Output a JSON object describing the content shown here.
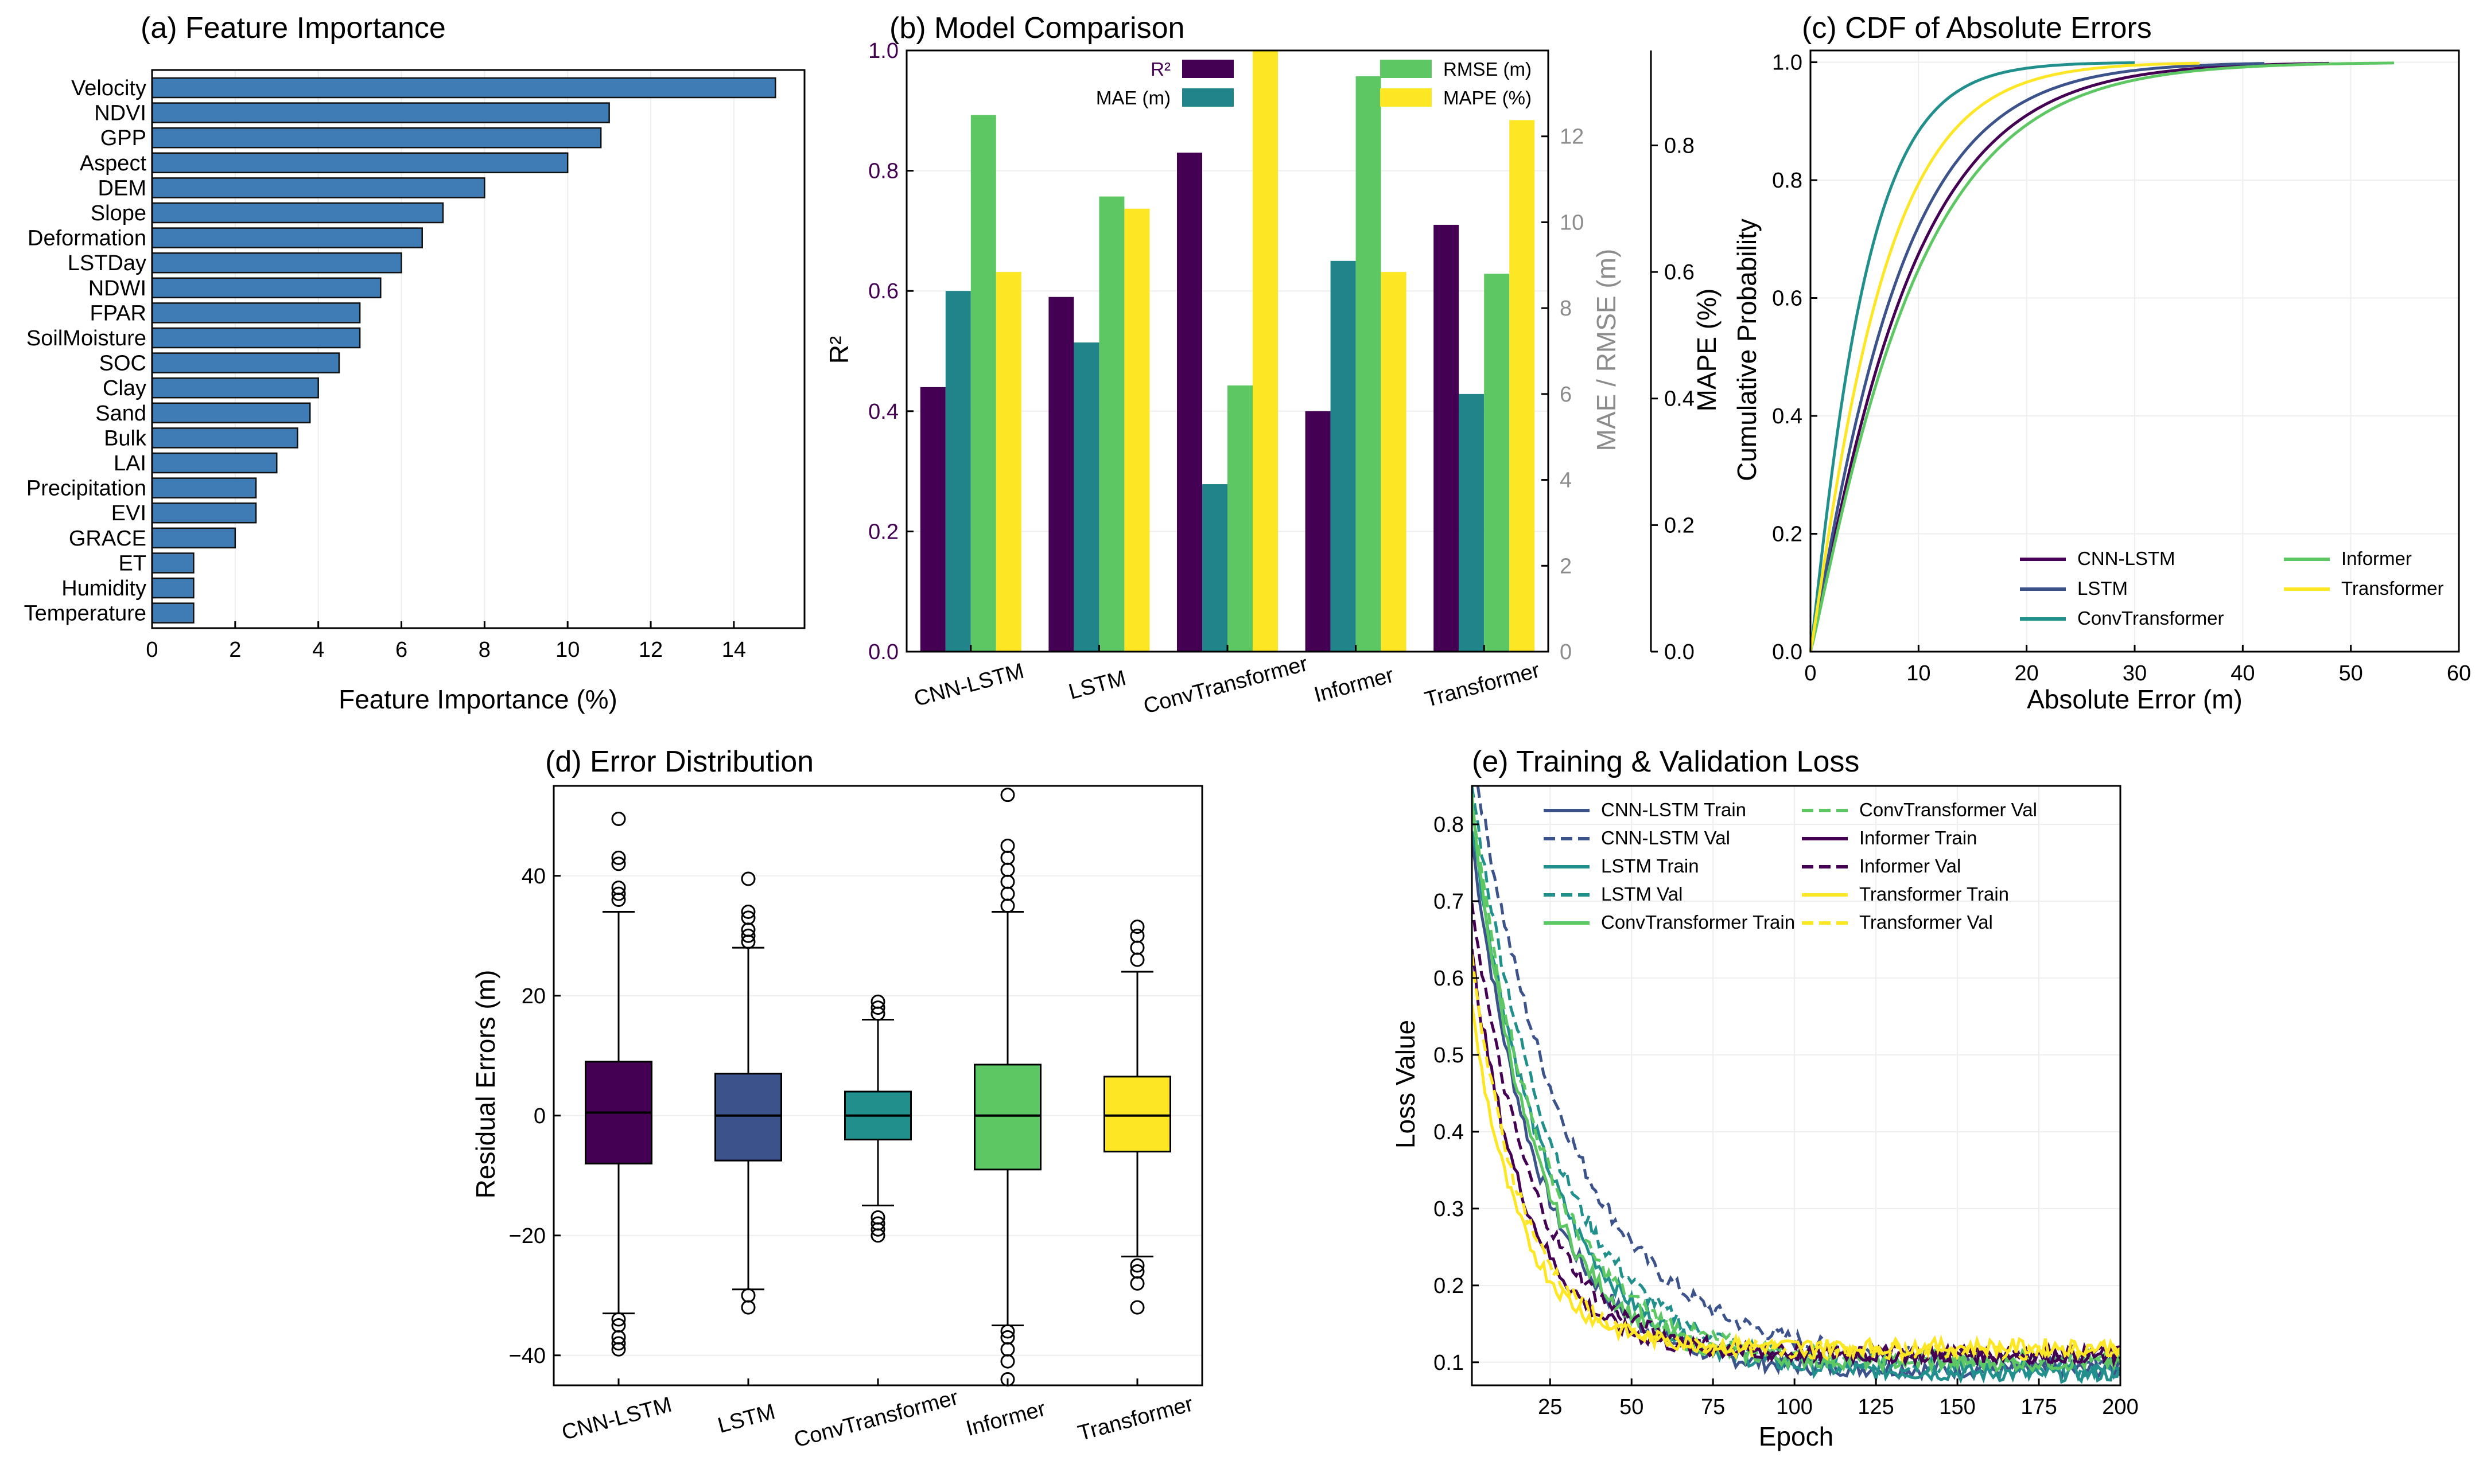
{
  "colors": {
    "viridis": [
      "#440154",
      "#3b528b",
      "#21908d",
      "#5dc863",
      "#fde725"
    ],
    "feature_bar": "#3f7cb6",
    "r2": "#440154",
    "mae": "#21848a",
    "rmse": "#5dc863",
    "mape": "#fde725",
    "mae_axis_label": "#8c8c8c",
    "r2_axis_label": "#440154"
  },
  "chart_data": [
    {
      "id": "a",
      "type": "bar",
      "orientation": "horizontal",
      "title": "(a) Feature Importance",
      "xlabel": "Feature Importance (%)",
      "ylabel": "",
      "xlim": [
        0,
        15.7
      ],
      "xticks": [
        0,
        2,
        4,
        6,
        8,
        10,
        12,
        14
      ],
      "categories": [
        "Velocity",
        "NDVI",
        "GPP",
        "Aspect",
        "DEM",
        "Slope",
        "Deformation",
        "LSTDay",
        "NDWI",
        "FPAR",
        "SoilMoisture",
        "SOC",
        "Clay",
        "Sand",
        "Bulk",
        "LAI",
        "Precipitation",
        "EVI",
        "GRACE",
        "ET",
        "Humidity",
        "Temperature"
      ],
      "values": [
        15.0,
        11.0,
        10.8,
        10.0,
        8.0,
        7.0,
        6.5,
        6.0,
        5.5,
        5.0,
        5.0,
        4.5,
        4.0,
        3.8,
        3.5,
        3.0,
        2.5,
        2.5,
        2.0,
        1.0,
        1.0,
        1.0
      ]
    },
    {
      "id": "b",
      "type": "bar",
      "title": "(b) Model Comparison",
      "categories": [
        "CNN-LSTM",
        "LSTM",
        "ConvTransformer",
        "Informer",
        "Transformer"
      ],
      "series": [
        {
          "name": "R²",
          "axis": "left",
          "values": [
            0.44,
            0.59,
            0.83,
            0.4,
            0.71
          ]
        },
        {
          "name": "MAE (m)",
          "axis": "right1",
          "values": [
            8.4,
            7.2,
            3.9,
            9.1,
            6.0
          ]
        },
        {
          "name": "RMSE (m)",
          "axis": "right1",
          "values": [
            12.5,
            10.6,
            6.2,
            13.4,
            8.8
          ]
        },
        {
          "name": "MAPE (%)",
          "axis": "right2",
          "values": [
            0.6,
            0.7,
            0.95,
            0.6,
            0.84
          ]
        }
      ],
      "ylabel_left": "R²",
      "ylim_left": [
        0,
        1.0
      ],
      "yticks_left": [
        "0.0",
        "0.2",
        "0.4",
        "0.6",
        "0.8",
        "1.0"
      ],
      "ylabel_right1": "MAE / RMSE (m)",
      "ylim_right1": [
        0,
        14
      ],
      "yticks_right1": [
        "0",
        "2",
        "4",
        "6",
        "8",
        "10",
        "12"
      ],
      "ylabel_right2": "MAPE (%)",
      "ylim_right2": [
        0,
        0.95
      ],
      "yticks_right2": [
        "0.0",
        "0.2",
        "0.4",
        "0.6",
        "0.8"
      ]
    },
    {
      "id": "c",
      "type": "line",
      "title": "(c) CDF of Absolute Errors",
      "xlabel": "Absolute Error (m)",
      "ylabel": "Cumulative Probability",
      "xlim": [
        0,
        60
      ],
      "ylim": [
        0,
        1.02
      ],
      "xticks": [
        "0",
        "10",
        "20",
        "30",
        "40",
        "50",
        "60"
      ],
      "yticks": [
        "0.0",
        "0.2",
        "0.4",
        "0.6",
        "0.8",
        "1.0"
      ],
      "series": [
        {
          "name": "CNN-LSTM",
          "scale": 9.0,
          "max_x": 48
        },
        {
          "name": "LSTM",
          "scale": 8.0,
          "max_x": 42
        },
        {
          "name": "ConvTransformer",
          "scale": 5.0,
          "max_x": 30
        },
        {
          "name": "Informer",
          "scale": 9.6,
          "max_x": 54
        },
        {
          "name": "Transformer",
          "scale": 6.6,
          "max_x": 36
        }
      ]
    },
    {
      "id": "d",
      "type": "box",
      "title": "(d) Error Distribution",
      "xlabel": "",
      "ylabel": "Residual Errors (m)",
      "ylim": [
        -45,
        55
      ],
      "yticks": [
        "−40",
        "−20",
        "0",
        "20",
        "40"
      ],
      "categories": [
        "CNN-LSTM",
        "LSTM",
        "ConvTransformer",
        "Informer",
        "Transformer"
      ],
      "boxes": [
        {
          "name": "CNN-LSTM",
          "q1": -8,
          "median": 0.5,
          "q3": 9,
          "whisker_low": -33,
          "whisker_high": 34,
          "outliers": [
            -39,
            -38,
            -37,
            -35,
            -34,
            36,
            37,
            38,
            42,
            43,
            49.5
          ]
        },
        {
          "name": "LSTM",
          "q1": -7.5,
          "median": 0,
          "q3": 7,
          "whisker_low": -29,
          "whisker_high": 28,
          "outliers": [
            -32,
            -30,
            29,
            30,
            31,
            33,
            34,
            39.5
          ]
        },
        {
          "name": "ConvTransformer",
          "q1": -4,
          "median": 0,
          "q3": 4,
          "whisker_low": -15,
          "whisker_high": 16,
          "outliers": [
            -20,
            -19,
            -18,
            -17,
            17,
            18,
            19
          ]
        },
        {
          "name": "Informer",
          "q1": -9,
          "median": 0,
          "q3": 8.5,
          "whisker_low": -35,
          "whisker_high": 34,
          "outliers": [
            -44,
            -41,
            -39,
            -37,
            -36,
            35,
            37,
            39,
            41,
            43,
            45,
            53.5
          ]
        },
        {
          "name": "Transformer",
          "q1": -6,
          "median": 0,
          "q3": 6.5,
          "whisker_low": -23.5,
          "whisker_high": 24,
          "outliers": [
            -32,
            -28,
            -26,
            -25,
            26,
            28,
            30,
            31.5
          ]
        }
      ]
    },
    {
      "id": "e",
      "type": "line",
      "title": "(e) Training & Validation Loss",
      "xlabel": "Epoch",
      "ylabel": "Loss Value",
      "xlim": [
        1,
        200
      ],
      "ylim": [
        0.07,
        0.85
      ],
      "xticks": [
        "25",
        "50",
        "75",
        "100",
        "125",
        "150",
        "175",
        "200"
      ],
      "yticks": [
        "0.1",
        "0.2",
        "0.3",
        "0.4",
        "0.5",
        "0.6",
        "0.7",
        "0.8"
      ],
      "series": [
        {
          "name": "CNN-LSTM Train",
          "style": "solid",
          "start": 0.78,
          "decay": 21,
          "final": 0.09
        },
        {
          "name": "CNN-LSTM Val",
          "style": "dashed",
          "start": 0.9,
          "decay": 30,
          "final": 0.1
        },
        {
          "name": "LSTM Train",
          "style": "solid",
          "start": 0.8,
          "decay": 24,
          "final": 0.085
        },
        {
          "name": "LSTM Val",
          "style": "dashed",
          "start": 0.85,
          "decay": 26,
          "final": 0.09
        },
        {
          "name": "ConvTransformer Train",
          "style": "solid",
          "start": 0.82,
          "decay": 20,
          "final": 0.1
        },
        {
          "name": "ConvTransformer Val",
          "style": "dashed",
          "start": 0.83,
          "decay": 22,
          "final": 0.105
        },
        {
          "name": "Informer Train",
          "style": "solid",
          "start": 0.63,
          "decay": 17,
          "final": 0.11
        },
        {
          "name": "Informer Val",
          "style": "dashed",
          "start": 0.7,
          "decay": 19,
          "final": 0.11
        },
        {
          "name": "Transformer Train",
          "style": "solid",
          "start": 0.56,
          "decay": 15,
          "final": 0.12
        },
        {
          "name": "Transformer Val",
          "style": "dashed",
          "start": 0.62,
          "decay": 16,
          "final": 0.115
        }
      ]
    }
  ]
}
